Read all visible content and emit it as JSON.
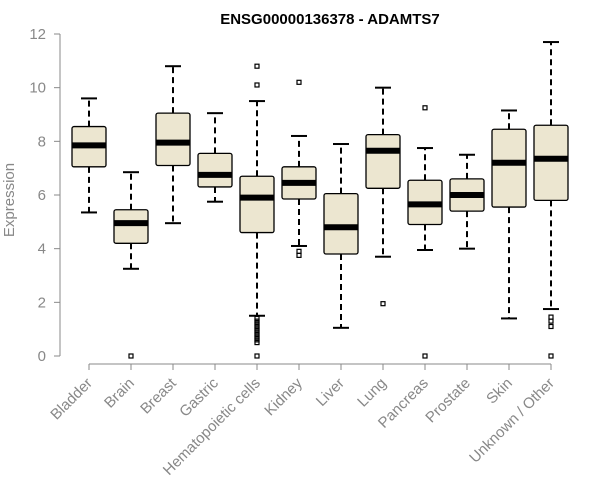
{
  "chart_data": {
    "type": "boxplot",
    "title": "ENSG00000136378 - ADAMTS7",
    "ylabel": "Expression",
    "xlabel": "",
    "ylim": [
      0,
      12
    ],
    "yticks": [
      0,
      2,
      4,
      6,
      8,
      10,
      12
    ],
    "categories": [
      "Bladder",
      "Brain",
      "Breast",
      "Gastric",
      "Hematopoietic cells",
      "Kidney",
      "Liver",
      "Lung",
      "Pancreas",
      "Prostate",
      "Skin",
      "Unknown / Other"
    ],
    "boxes": [
      {
        "name": "Bladder",
        "min": 5.35,
        "q1": 7.05,
        "median": 7.85,
        "q3": 8.55,
        "max": 9.6,
        "outliers": []
      },
      {
        "name": "Brain",
        "min": 3.25,
        "q1": 4.2,
        "median": 4.95,
        "q3": 5.45,
        "max": 6.85,
        "outliers": [
          0.0
        ]
      },
      {
        "name": "Breast",
        "min": 4.95,
        "q1": 7.1,
        "median": 7.95,
        "q3": 9.05,
        "max": 10.8,
        "outliers": []
      },
      {
        "name": "Gastric",
        "min": 5.75,
        "q1": 6.3,
        "median": 6.75,
        "q3": 7.55,
        "max": 9.05,
        "outliers": []
      },
      {
        "name": "Hematopoietic cells",
        "min": 1.5,
        "q1": 4.6,
        "median": 5.9,
        "q3": 6.7,
        "max": 9.5,
        "outliers": [
          10.8,
          10.1,
          1.4,
          1.3,
          1.2,
          1.1,
          1.0,
          0.9,
          0.8,
          0.7,
          0.6,
          0.5,
          0.0
        ]
      },
      {
        "name": "Kidney",
        "min": 4.1,
        "q1": 5.85,
        "median": 6.45,
        "q3": 7.05,
        "max": 8.2,
        "outliers": [
          10.2,
          3.9,
          3.75
        ]
      },
      {
        "name": "Liver",
        "min": 1.05,
        "q1": 3.8,
        "median": 4.8,
        "q3": 6.05,
        "max": 7.9,
        "outliers": []
      },
      {
        "name": "Lung",
        "min": 3.7,
        "q1": 6.25,
        "median": 7.65,
        "q3": 8.25,
        "max": 10.0,
        "outliers": [
          1.95
        ]
      },
      {
        "name": "Pancreas",
        "min": 3.95,
        "q1": 4.9,
        "median": 5.65,
        "q3": 6.55,
        "max": 7.75,
        "outliers": [
          9.25,
          0.0
        ]
      },
      {
        "name": "Prostate",
        "min": 4.0,
        "q1": 5.4,
        "median": 6.0,
        "q3": 6.6,
        "max": 7.5,
        "outliers": []
      },
      {
        "name": "Skin",
        "min": 1.4,
        "q1": 5.55,
        "median": 7.2,
        "q3": 8.45,
        "max": 9.15,
        "outliers": []
      },
      {
        "name": "Unknown / Other",
        "min": 1.75,
        "q1": 5.8,
        "median": 7.35,
        "q3": 8.6,
        "max": 11.7,
        "outliers": [
          1.45,
          1.3,
          1.1,
          0.0
        ]
      }
    ]
  }
}
